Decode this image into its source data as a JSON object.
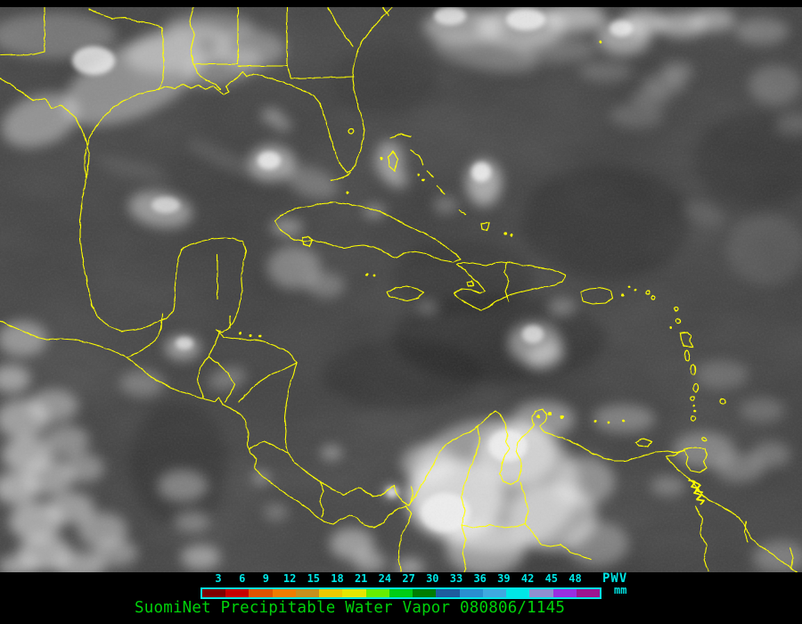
{
  "caption": {
    "text": "SuomiNet Precipitable Water Vapor 080806/1145",
    "color": "#00d20a"
  },
  "colorbar": {
    "tick_labels": [
      "3",
      "6",
      "9",
      "12",
      "15",
      "18",
      "21",
      "24",
      "27",
      "30",
      "33",
      "36",
      "39",
      "42",
      "45",
      "48"
    ],
    "unit_top": "PWV",
    "unit_bottom": "mm",
    "outline_color": "#00e6e6",
    "label_color": "#00e6e6",
    "segment_colors": [
      "#7f0000",
      "#c80000",
      "#e05300",
      "#ef7d00",
      "#c8901d",
      "#eec900",
      "#e6e600",
      "#66ee00",
      "#00cc14",
      "#007d00",
      "#1e5c9e",
      "#2a8ed0",
      "#3fa9e0",
      "#00e6e6",
      "#8f8fd0",
      "#9a2ee0",
      "#9e1490"
    ]
  },
  "map": {
    "coastline_color": "#ffff00",
    "ocean_gray": "#3e3e3e",
    "frame_background": "#000000"
  }
}
